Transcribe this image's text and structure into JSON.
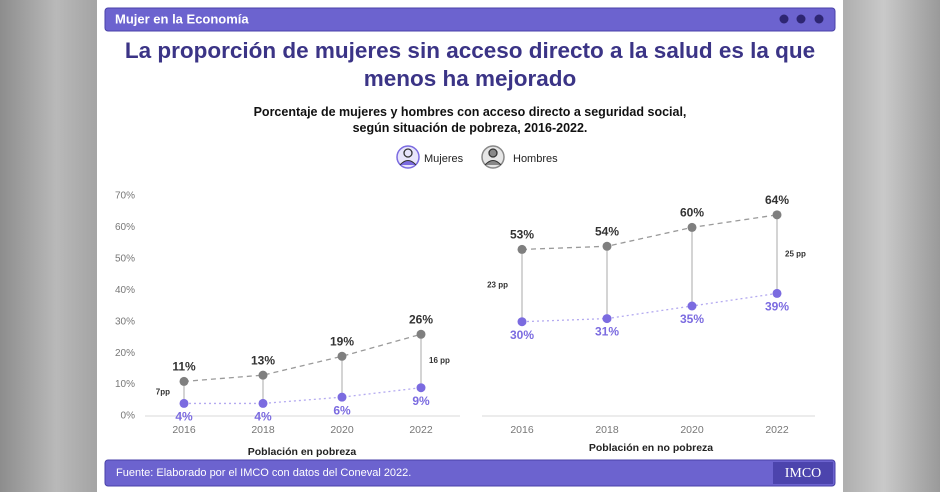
{
  "header": "Mujer en la Economía",
  "title": "La proporción de mujeres sin acceso directo a la salud es la que menos ha mejorado",
  "subtitle": "Porcentaje de mujeres y hombres con acceso directo a seguridad social, según situación de pobreza, 2016-2022.",
  "footer": {
    "source": "Fuente: Elaborado por el IMCO con datos del Coneval 2022.",
    "logo": "IMCO"
  },
  "chart_data": [
    {
      "type": "dumbbell",
      "x_label": "Población en pobreza",
      "categories": [
        "2016",
        "2018",
        "2020",
        "2022"
      ],
      "ylim": [
        0,
        70
      ],
      "yticks": [
        {
          "value": 0,
          "label": "0%"
        },
        {
          "value": 10,
          "label": "10%"
        },
        {
          "value": 20,
          "label": "20%"
        },
        {
          "value": 30,
          "label": "30%"
        },
        {
          "value": 40,
          "label": "40%"
        },
        {
          "value": 50,
          "label": "50%"
        },
        {
          "value": 60,
          "label": "60%"
        },
        {
          "value": 70,
          "label": "70%"
        }
      ],
      "series": [
        {
          "name": "Mujeres",
          "color": "#7b6be0",
          "values": [
            4,
            4,
            6,
            9
          ],
          "value_labels": [
            "4%",
            "4%",
            "6%",
            "9%"
          ]
        },
        {
          "name": "Hombres",
          "color": "#7f7f7f",
          "values": [
            11,
            13,
            19,
            26
          ],
          "value_labels": [
            "11%",
            "13%",
            "19%",
            "26%"
          ]
        }
      ],
      "annotations": [
        "7pp",
        "16 pp"
      ]
    },
    {
      "type": "dumbbell",
      "x_label": "Población en no pobreza",
      "categories": [
        "2016",
        "2018",
        "2020",
        "2022"
      ],
      "ylim": [
        0,
        70
      ],
      "series": [
        {
          "color": "#7b6be0",
          "values": [
            30,
            31,
            35,
            39
          ],
          "value_labels": [
            "30%",
            "31%",
            "35%",
            "39%"
          ]
        },
        {
          "color": "#7f7f7f",
          "values": [
            53,
            54,
            60,
            64
          ],
          "value_labels": [
            "53%",
            "54%",
            "60%",
            "64%"
          ]
        }
      ],
      "annotations": [
        "23 pp",
        "25 pp"
      ]
    }
  ]
}
